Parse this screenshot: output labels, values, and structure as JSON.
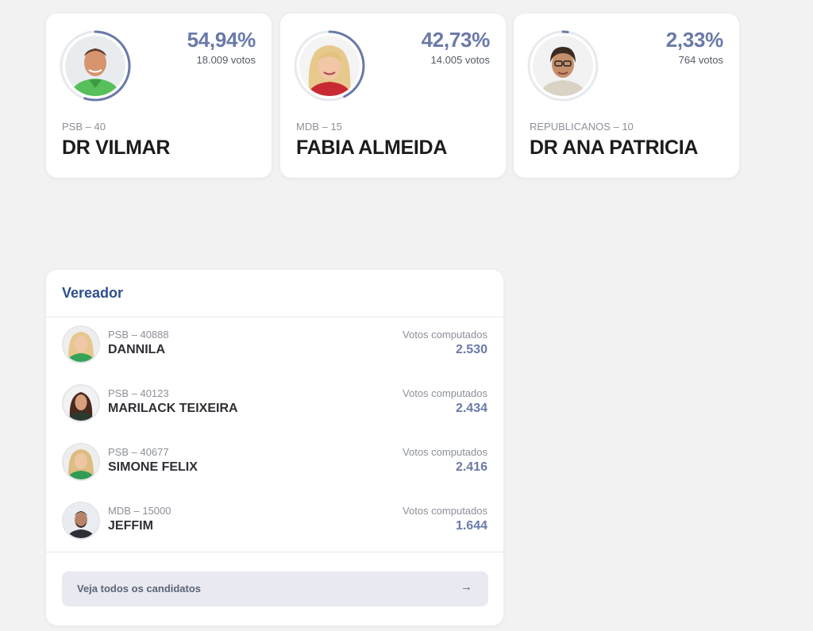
{
  "prefeito": [
    {
      "percent": "54,94%",
      "percent_value": 54.94,
      "votes": "18.009 votos",
      "party": "PSB – 40",
      "name": "DR VILMAR",
      "photo_icon": "candidate-photo-man-green-shirt"
    },
    {
      "percent": "42,73%",
      "percent_value": 42.73,
      "votes": "14.005 votos",
      "party": "MDB – 15",
      "name": "FABIA ALMEIDA",
      "photo_icon": "candidate-photo-woman-blonde"
    },
    {
      "percent": "2,33%",
      "percent_value": 2.33,
      "votes": "764 votos",
      "party": "REPUBLICANOS – 10",
      "name": "DR ANA PATRICIA",
      "photo_icon": "candidate-photo-woman-glasses"
    }
  ],
  "vereador": {
    "title": "Vereador",
    "votes_label": "Votos computados",
    "candidates": [
      {
        "party": "PSB – 40888",
        "name": "DANNILA",
        "votes": "2.530",
        "photo_icon": "candidate-photo-woman-blonde"
      },
      {
        "party": "PSB – 40123",
        "name": "MARILACK TEIXEIRA",
        "votes": "2.434",
        "photo_icon": "candidate-photo-woman-dark-hair"
      },
      {
        "party": "PSB – 40677",
        "name": "SIMONE FELIX",
        "votes": "2.416",
        "photo_icon": "candidate-photo-woman-blonde"
      },
      {
        "party": "MDB – 15000",
        "name": "JEFFIM",
        "votes": "1.644",
        "photo_icon": "candidate-photo-man-beard"
      }
    ],
    "see_all_label": "Veja todos os candidatos",
    "see_all_icon": "arrow-right-icon"
  },
  "colors": {
    "accent": "#6a7aa8",
    "title_blue": "#2e4f8f",
    "ring_track": "#e8e9ee",
    "background": "#f2f2f3"
  }
}
